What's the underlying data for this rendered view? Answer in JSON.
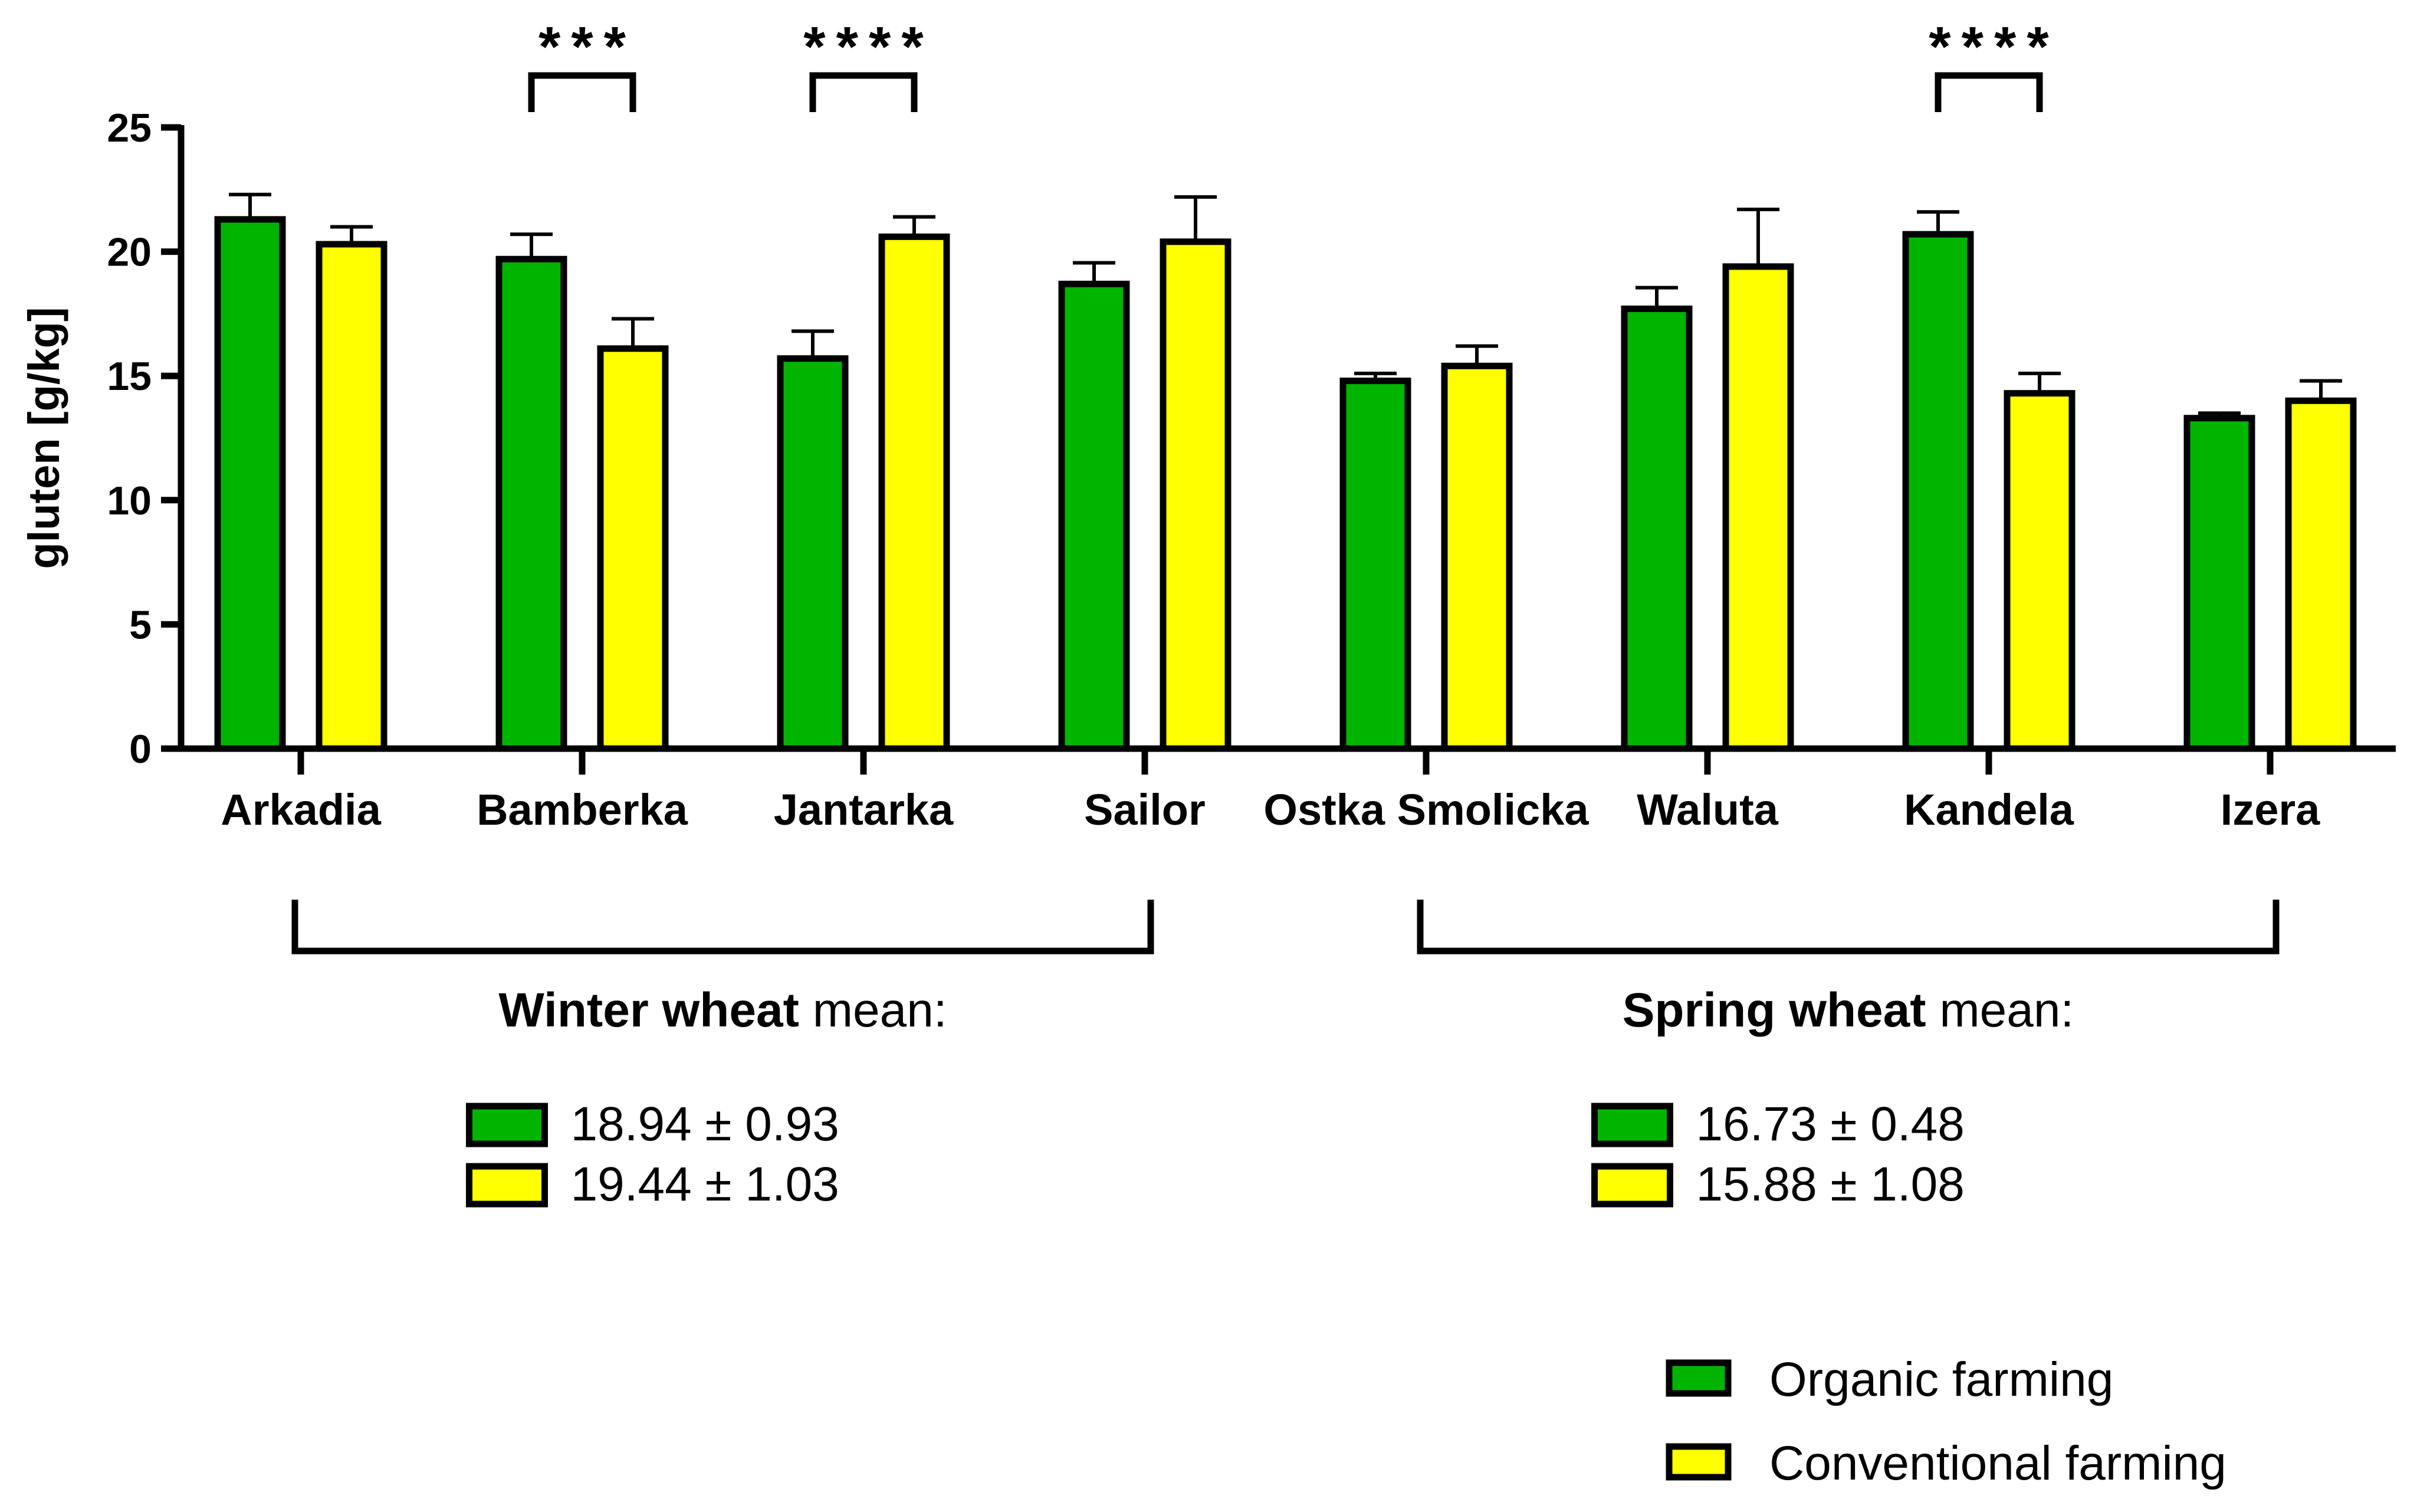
{
  "chart_data": {
    "type": "bar",
    "title": "",
    "xlabel": "",
    "ylabel": "gluten [g/kg]",
    "ylim": [
      0,
      25
    ],
    "yticks": [
      0,
      5,
      10,
      15,
      20,
      25
    ],
    "categories": [
      "Arkadia",
      "Bamberka",
      "Jantarka",
      "Sailor",
      "Ostka Smolicka",
      "Waluta",
      "Kandela",
      "Izera"
    ],
    "series": [
      {
        "name": "Organic farming",
        "color": "#00b400",
        "values": [
          21.3,
          19.7,
          15.7,
          18.7,
          14.8,
          17.7,
          20.7,
          13.3
        ],
        "errors": [
          1.0,
          1.0,
          1.1,
          0.85,
          0.3,
          0.85,
          0.9,
          0.2
        ]
      },
      {
        "name": "Conventional farming",
        "color": "#ffff00",
        "values": [
          20.3,
          16.1,
          20.6,
          20.4,
          15.4,
          19.4,
          14.3,
          14.0
        ],
        "errors": [
          0.7,
          1.2,
          0.8,
          1.8,
          0.8,
          2.3,
          0.8,
          0.8
        ]
      }
    ],
    "significance": [
      {
        "category": "Bamberka",
        "label": "***"
      },
      {
        "category": "Jantarka",
        "label": "****"
      },
      {
        "category": "Kandela",
        "label": "****"
      }
    ],
    "groups": [
      {
        "name": "Winter wheat",
        "suffix": " mean:",
        "categories": [
          "Arkadia",
          "Bamberka",
          "Jantarka",
          "Sailor"
        ],
        "means": [
          "18.94 ± 0.93",
          "19.44 ± 1.03"
        ]
      },
      {
        "name": "Spring wheat",
        "suffix": " mean:",
        "categories": [
          "Ostka Smolicka",
          "Waluta",
          "Kandela",
          "Izera"
        ],
        "means": [
          "16.73 ± 0.48",
          "15.88 ± 1.08"
        ]
      }
    ],
    "legend": {
      "position": "bottom-right",
      "entries": [
        "Organic farming",
        "Conventional farming"
      ]
    },
    "grid": false,
    "outline_color": "#000000"
  }
}
